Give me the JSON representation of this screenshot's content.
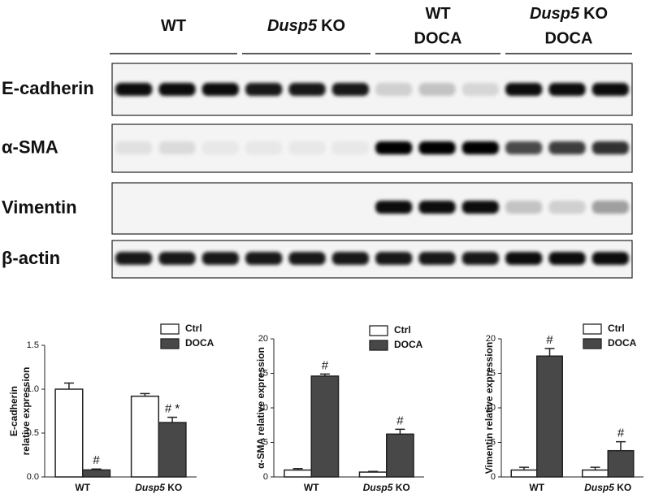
{
  "blot": {
    "groups": [
      {
        "label": "WT"
      },
      {
        "italic": "Dusp5",
        "label": "KO"
      },
      {
        "label": "WT",
        "sub": "DOCA"
      },
      {
        "italic": "Dusp5",
        "label": "KO",
        "sub": "DOCA"
      }
    ],
    "rows": [
      "E-cadherin",
      "α-SMA",
      "Vimentin",
      "β-actin"
    ]
  },
  "chart_data": [
    {
      "type": "bar",
      "y_label": [
        "E-cadherin",
        "relative expression"
      ],
      "categories": [
        "WT",
        "Dusp5 KO"
      ],
      "series": [
        {
          "name": "Ctrl",
          "color": "#ffffff",
          "values": [
            1.0,
            0.92
          ],
          "errors": [
            0.07,
            0.03
          ]
        },
        {
          "name": "DOCA",
          "color": "#484848",
          "values": [
            0.08,
            0.62
          ],
          "errors": [
            0.01,
            0.06
          ],
          "annotations": [
            "#",
            "# *"
          ]
        }
      ],
      "ylim": [
        0,
        1.5
      ],
      "yticks": [
        {
          "value": 0,
          "label": "0.0"
        },
        0.5,
        {
          "value": 1,
          "label": "1.0"
        },
        1.5
      ]
    },
    {
      "type": "bar",
      "y_label": [
        "α-SMA relative expression"
      ],
      "categories": [
        "WT",
        "Dusp5 KO"
      ],
      "series": [
        {
          "name": "Ctrl",
          "color": "#ffffff",
          "values": [
            1.0,
            0.7
          ],
          "errors": [
            0.2,
            0.1
          ]
        },
        {
          "name": "DOCA",
          "color": "#484848",
          "values": [
            14.6,
            6.2
          ],
          "errors": [
            0.3,
            0.7
          ],
          "annotations": [
            "#",
            "#"
          ]
        }
      ],
      "ylim": [
        0,
        20
      ],
      "yticks": [
        0,
        5,
        10,
        15,
        20
      ]
    },
    {
      "type": "bar",
      "y_label": [
        "Vimentin relative expression"
      ],
      "categories": [
        "WT",
        "Dusp5 KO"
      ],
      "series": [
        {
          "name": "Ctrl",
          "color": "#ffffff",
          "values": [
            1.0,
            1.0
          ],
          "errors": [
            0.4,
            0.4
          ]
        },
        {
          "name": "DOCA",
          "color": "#484848",
          "values": [
            17.5,
            3.8
          ],
          "errors": [
            1.1,
            1.3
          ],
          "annotations": [
            "#",
            "#"
          ]
        }
      ],
      "ylim": [
        0,
        20
      ],
      "yticks": [
        0,
        5,
        10,
        15,
        20
      ]
    }
  ]
}
